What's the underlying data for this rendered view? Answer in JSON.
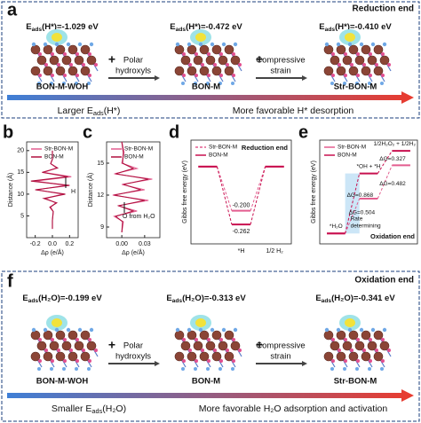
{
  "panels": {
    "a": {
      "letter": "a",
      "corner": "Reduction end",
      "energies": [
        [
          "E",
          "ads",
          "(H*)=-1.029 eV"
        ],
        [
          "E",
          "ads",
          "(H*)=-0.472 eV"
        ],
        [
          "E",
          "ads",
          "(H*)=-0.410 eV"
        ]
      ],
      "structures": [
        "BON-M-WOH",
        "BON-M",
        "Str-BON-M"
      ],
      "steps": [
        [
          "Polar",
          "hydroxyls"
        ],
        [
          "Compressive",
          "strain"
        ]
      ],
      "arrow_left": [
        "Larger E",
        "ads",
        "(H*)"
      ],
      "arrow_right": "More favorable H* desorption"
    },
    "f": {
      "letter": "f",
      "corner": "Oxidation end",
      "energies": [
        [
          "E",
          "ads",
          "(H₂O)=-0.199 eV"
        ],
        [
          "E",
          "ads",
          "(H₂O)=-0.313 eV"
        ],
        [
          "E",
          "ads",
          "(H₂O)=-0.341 eV"
        ]
      ],
      "structures": [
        "BON-M-WOH",
        "BON-M",
        "Str-BON-M"
      ],
      "steps": [
        [
          "Polar",
          "hydroxyls"
        ],
        [
          "Compressive",
          "strain"
        ]
      ],
      "arrow_left": [
        "Smaller E",
        "ads",
        "(H₂O)"
      ],
      "arrow_right": "More favorable H₂O adsorption and activation"
    }
  },
  "chart_data": [
    {
      "type": "profile",
      "panel": "b",
      "xlabel": "Δρ (e/Å)",
      "ylabel": "Distance (Å)",
      "xlim": [
        -0.3,
        0.3
      ],
      "xticks": [
        -0.2,
        {
          "value": 0,
          "label": "0.0"
        },
        0.2
      ],
      "ylim": [
        0,
        22
      ],
      "yticks": [
        5,
        10,
        15,
        20
      ],
      "y": [
        2,
        4,
        6,
        7,
        8,
        9,
        10,
        11,
        12,
        13,
        14,
        15,
        16,
        17,
        18,
        20
      ],
      "series": [
        {
          "name": "Str-BON-M",
          "color": "#e35d8f",
          "values": [
            0,
            0,
            0.01,
            -0.02,
            0.04,
            -0.08,
            0.12,
            -0.18,
            0.16,
            -0.2,
            0.22,
            -0.1,
            0.05,
            -0.02,
            0,
            0
          ]
        },
        {
          "name": "BON-M",
          "color": "#b0103f",
          "values": [
            0,
            0,
            0.01,
            -0.03,
            0.05,
            -0.1,
            0.15,
            -0.2,
            0.2,
            -0.25,
            0.18,
            -0.12,
            0.06,
            -0.02,
            0,
            0
          ]
        }
      ],
      "annotations": [
        "H"
      ]
    },
    {
      "type": "profile",
      "panel": "c",
      "xlabel": "Δρ (e/Å)",
      "ylabel": "Distance (Å)",
      "xlim": [
        -0.02,
        0.05
      ],
      "xticks": [
        {
          "value": 0,
          "label": "0.00"
        },
        {
          "value": 0.03,
          "label": "0.03"
        }
      ],
      "ylim": [
        8,
        17
      ],
      "yticks": [
        9,
        12,
        15
      ],
      "y": [
        8.5,
        9.5,
        10,
        10.5,
        11,
        11.5,
        12,
        12.5,
        13,
        13.5,
        14,
        14.5,
        15,
        16,
        17
      ],
      "series": [
        {
          "name": "Str-BON-M",
          "color": "#e35d8f",
          "values": [
            0,
            0.002,
            -0.01,
            0.02,
            -0.005,
            0.035,
            -0.012,
            0.03,
            0.0,
            0.04,
            -0.01,
            0.02,
            0.0,
            0.003,
            0
          ]
        },
        {
          "name": "BON-M",
          "color": "#b0103f",
          "values": [
            0,
            0.001,
            -0.008,
            0.015,
            -0.004,
            0.03,
            -0.01,
            0.025,
            0.002,
            0.035,
            -0.008,
            0.015,
            0.001,
            0.002,
            0
          ]
        }
      ],
      "annotations": [
        "O from H₂O"
      ]
    },
    {
      "type": "energy_steps",
      "panel": "d",
      "ylabel": "Gibbs free energy (eV)",
      "categories": [
        null,
        "*H",
        "1/2 H₂"
      ],
      "ylim": [
        -0.35,
        0.12
      ],
      "series": [
        {
          "name": "Str-BON-M",
          "color": "#e35d8f",
          "dashed": true,
          "values": [
            0,
            -0.2,
            0
          ],
          "value_labels": [
            null,
            "-0.200",
            null
          ]
        },
        {
          "name": "BON-M",
          "color": "#c8104f",
          "dashed": false,
          "values": [
            0,
            -0.262,
            0
          ],
          "value_labels": [
            null,
            "-0.262",
            null
          ]
        }
      ],
      "annotations": [
        "Reduction end"
      ]
    },
    {
      "type": "energy_steps",
      "panel": "e",
      "ylabel": "Gibbs free energy (eV)",
      "categories": [
        "*H₂O",
        "*OH + *H",
        "1/2H₂O₂ + 1/2H₂"
      ],
      "ylim": [
        -0.15,
        1.35
      ],
      "series": [
        {
          "name": "Str-BON-M",
          "color": "#e35d8f",
          "dashed": false,
          "values": [
            0,
            0.504,
            0.986
          ]
        },
        {
          "name": "BON-M",
          "color": "#c8104f",
          "dashed": false,
          "values": [
            0,
            0.868,
            1.195
          ]
        }
      ],
      "annotations": [
        "ΔG=0.868",
        "ΔG=0.504",
        "ΔG=0.327",
        "ΔG=0.482",
        "Rate",
        "determining",
        "Oxidation end"
      ]
    }
  ]
}
